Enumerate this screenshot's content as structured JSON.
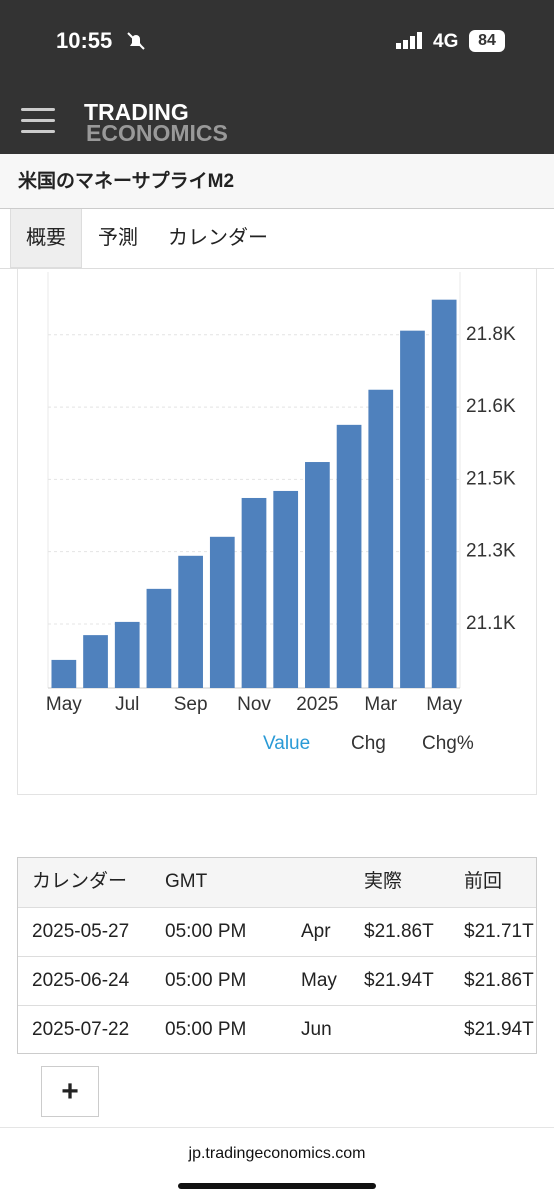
{
  "status_bar": {
    "time": "10:55",
    "network": "4G",
    "battery": "84"
  },
  "header": {
    "logo_top": "TRADING",
    "logo_bottom": "ECONOMICS"
  },
  "page_title": "米国のマネーサプライM2",
  "tabs": [
    "概要",
    "予測",
    "カレンダー"
  ],
  "chart_data": {
    "type": "bar",
    "categories": [
      "May",
      null,
      "Jul",
      null,
      "Sep",
      null,
      "Nov",
      null,
      "2025",
      null,
      "Mar",
      null,
      "May"
    ],
    "values": [
      21013,
      21073,
      21105,
      21185,
      21265,
      21311,
      21405,
      21422,
      21492,
      21582,
      21667,
      21810,
      21885
    ],
    "color": "#4f81bd",
    "ylim": [
      20945,
      21952
    ],
    "yticks": [
      {
        "value": 21100,
        "label": "21.1K"
      },
      {
        "value": 21275,
        "label": "21.3K"
      },
      {
        "value": 21450,
        "label": "21.5K"
      },
      {
        "value": 21625,
        "label": "21.6K"
      },
      {
        "value": 21800,
        "label": "21.8K"
      }
    ],
    "yaxis_position": "right",
    "grid": true
  },
  "chart_tabs": [
    "Value",
    "Chg",
    "Chg%"
  ],
  "table": {
    "columns": [
      "カレンダー",
      "GMT",
      "実際",
      "前回"
    ],
    "rows": [
      {
        "date": "2025-05-27",
        "time": "05:00 PM",
        "period": "Apr",
        "actual": "$21.86T",
        "previous": "$21.71T"
      },
      {
        "date": "2025-06-24",
        "time": "05:00 PM",
        "period": "May",
        "actual": "$21.94T",
        "previous": "$21.86T"
      },
      {
        "date": "2025-07-22",
        "time": "05:00 PM",
        "period": "Jun",
        "previous": "$21.94T"
      }
    ]
  },
  "add_button": "+",
  "url": "jp.tradingeconomics.com"
}
